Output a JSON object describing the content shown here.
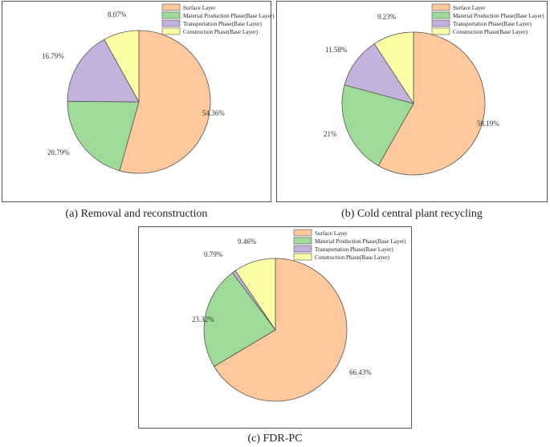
{
  "colors": {
    "surface": "#fcc89c",
    "material": "#9edb98",
    "transport": "#c3b2db",
    "construction": "#fdfea6",
    "edge": "#555555"
  },
  "chart_data": [
    {
      "type": "pie",
      "caption": "(a) Removal and reconstruction",
      "legend": [
        "Surface Layer",
        "Material Production Phase(Base Layer)",
        "Transportation Phase(Base Layer)",
        "Construction Phase(Base Layer)"
      ],
      "values": [
        54.36,
        20.79,
        16.79,
        8.07
      ],
      "labels": [
        "54.36%",
        "20.79%",
        "16.79%",
        "8.07%"
      ],
      "legend_placement": "top-right"
    },
    {
      "type": "pie",
      "caption": "(b) Cold central plant recycling",
      "legend": [
        "Surface Layer",
        "Material Production Phase(Base Layer)",
        "Transportation Phase(Base Layer)",
        "Construction Phase(Base Layer)"
      ],
      "values": [
        58.19,
        21,
        11.58,
        9.23
      ],
      "labels": [
        "58.19%",
        "21%",
        "11.58%",
        "9.23%"
      ],
      "legend_placement": "top-right"
    },
    {
      "type": "pie",
      "caption": "(c) FDR-PC",
      "legend": [
        "Surface Layer",
        "Material Production Phase(Base Layer)",
        "Transportation Phase(Base Layer)",
        "Construction Phase(Base Layer)"
      ],
      "values": [
        66.43,
        23.32,
        0.79,
        9.46
      ],
      "labels": [
        "66.43%",
        "23.32%",
        "0.79%",
        "9.46%"
      ],
      "legend_placement": "top-right"
    }
  ]
}
